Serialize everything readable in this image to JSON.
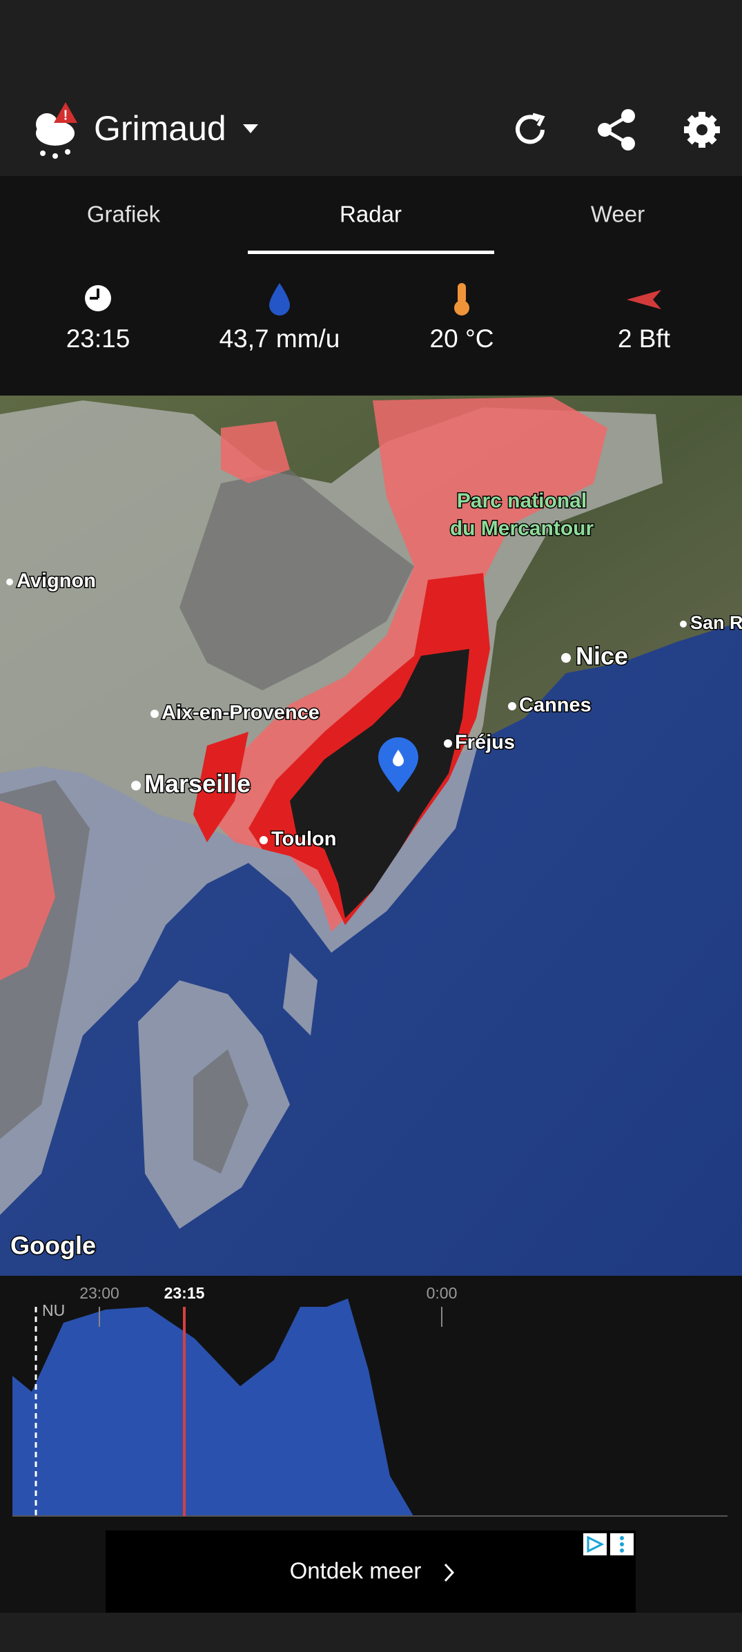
{
  "header": {
    "location": "Grimaud"
  },
  "tabs": [
    "Grafiek",
    "Radar",
    "Weer"
  ],
  "stats": [
    "23:15",
    "43,7 mm/u",
    "20 °C",
    "2 Bft"
  ],
  "map": {
    "labels": [
      "Avignon",
      "Parc national",
      "du Mercantour",
      "Nice",
      "San R",
      "Cannes",
      "Aix-en-Provence",
      "Fréjus",
      "Marseille",
      "Toulon"
    ],
    "attribution": "Google"
  },
  "timeline": {
    "now": "NU",
    "times": [
      "23:00",
      "23:15",
      "0:00"
    ]
  },
  "ad": {
    "text": "Ontdek meer"
  }
}
